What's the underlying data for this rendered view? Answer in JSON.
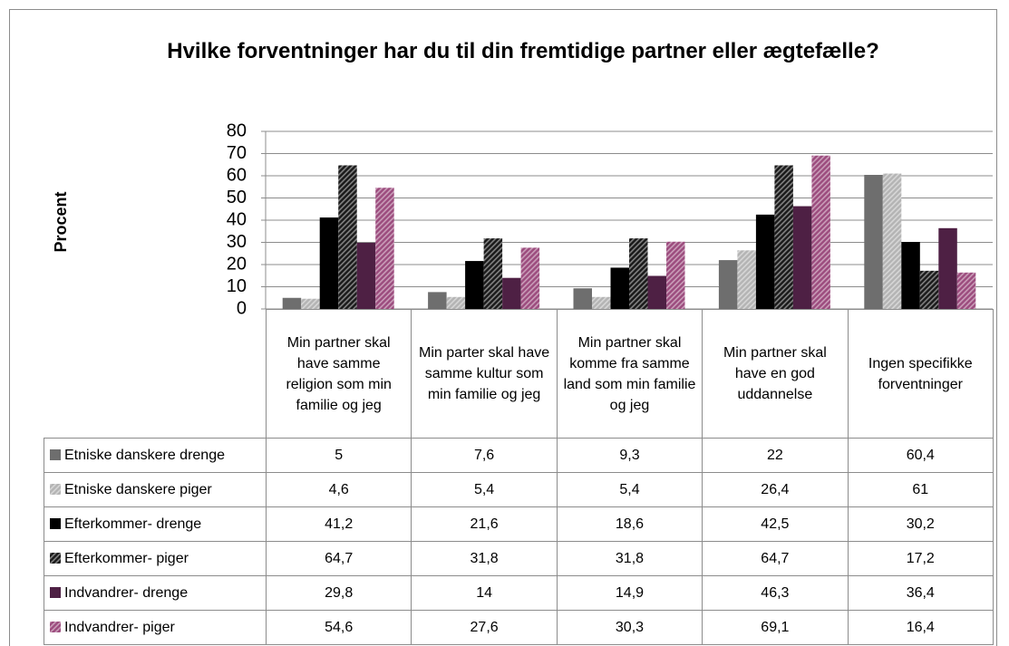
{
  "chart_data": {
    "type": "bar",
    "title": "Hvilke forventninger har du til din fremtidige partner eller ægtefælle?",
    "y_label": "Procent",
    "categories": [
      "Min partner skal have samme religion som min familie og jeg",
      "Min parter skal have samme kultur som min familie og jeg",
      "Min partner skal komme fra samme land som min familie og jeg",
      "Min partner skal have en god uddannelse",
      "Ingen specifikke forventninger"
    ],
    "series": [
      {
        "name": "Etniske danskere drenge",
        "color": "#6e6e6e",
        "hatched": false,
        "values": [
          5,
          7.6,
          9.3,
          22,
          60.4
        ],
        "value_labels": [
          "5",
          "7,6",
          "9,3",
          "22",
          "60,4"
        ]
      },
      {
        "name": "Etniske danskere piger",
        "color": "#b4b4b4",
        "hatched": true,
        "values": [
          4.6,
          5.4,
          5.4,
          26.4,
          61
        ],
        "value_labels": [
          "4,6",
          "5,4",
          "5,4",
          "26,4",
          "61"
        ]
      },
      {
        "name": "Efterkommer- drenge",
        "color": "#000000",
        "hatched": false,
        "values": [
          41.2,
          21.6,
          18.6,
          42.5,
          30.2
        ],
        "value_labels": [
          "41,2",
          "21,6",
          "18,6",
          "42,5",
          "30,2"
        ]
      },
      {
        "name": "Efterkommer- piger",
        "color": "#1a1a1a",
        "hatched": true,
        "values": [
          64.7,
          31.8,
          31.8,
          64.7,
          17.2
        ],
        "value_labels": [
          "64,7",
          "31,8",
          "31,8",
          "64,7",
          "17,2"
        ]
      },
      {
        "name": "Indvandrer- drenge",
        "color": "#4e2044",
        "hatched": false,
        "values": [
          29.8,
          14,
          14.9,
          46.3,
          36.4
        ],
        "value_labels": [
          "29,8",
          "14",
          "14,9",
          "46,3",
          "36,4"
        ]
      },
      {
        "name": "Indvandrer- piger",
        "color": "#9c4c7e",
        "hatched": true,
        "values": [
          54.6,
          27.6,
          30.3,
          69.1,
          16.4
        ],
        "value_labels": [
          "54,6",
          "27,6",
          "30,3",
          "69,1",
          "16,4"
        ]
      }
    ],
    "ylim": [
      0,
      80
    ],
    "yticks": [
      0,
      10,
      20,
      30,
      40,
      50,
      60,
      70,
      80
    ],
    "grid": true
  }
}
